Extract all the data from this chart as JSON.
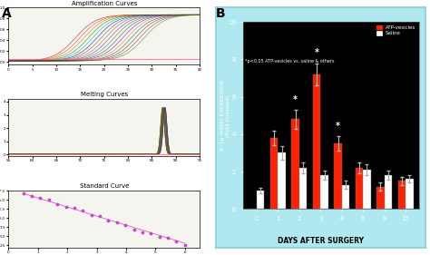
{
  "panel_B": {
    "background_color": "#000000",
    "outer_bg": "#b0e8f0",
    "categories": [
      "C",
      "1",
      "2",
      "3",
      "4",
      "6",
      "9",
      "15"
    ],
    "atp_values": [
      0.0,
      3.8,
      4.8,
      7.2,
      3.5,
      2.2,
      1.2,
      1.5
    ],
    "saline_values": [
      1.0,
      3.0,
      2.2,
      1.8,
      1.3,
      2.1,
      1.8,
      1.6
    ],
    "atp_errors": [
      0.0,
      0.4,
      0.5,
      0.6,
      0.4,
      0.3,
      0.2,
      0.2
    ],
    "saline_errors": [
      0.15,
      0.35,
      0.3,
      0.25,
      0.2,
      0.3,
      0.25,
      0.2
    ],
    "atp_color": "#ff2200",
    "saline_color": "#ffffff",
    "c_atp_color": "#cccc00",
    "ylabel": "IL-1p mRNA EXPRESSION\n(Fold Increase)",
    "xlabel": "DAYS AFTER SURGERY",
    "ylim": [
      0,
      10
    ],
    "yticks": [
      0,
      2,
      4,
      6,
      8,
      10
    ],
    "legend_atp": "ATP-vesicles",
    "legend_saline": "Saline",
    "note": "*p<0.05 ATP-vesicles vs. saline & others",
    "star_indices": [
      2,
      3,
      4
    ]
  }
}
